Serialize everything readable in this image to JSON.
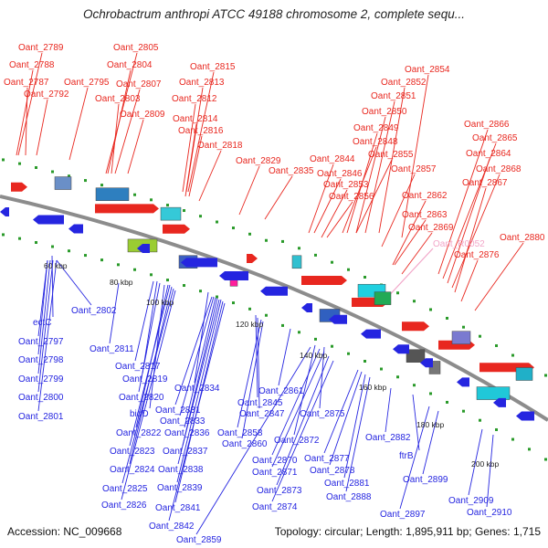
{
  "title": "Ochrobactrum anthropi ATCC 49188 chromosome 2, complete sequ...",
  "accession": "Accession: NC_009668",
  "summary": "Topology: circular; Length: 1,895,911 bp; Genes: 1,715",
  "colors": {
    "forward_gene": "#e8271f",
    "reverse_gene": "#2525e0",
    "rna_gene": "#f2a6c8",
    "backbone": "#8c8c8c",
    "tick": "#2a9a2a",
    "axis_label": "#222222"
  },
  "scale_labels": [
    "60 kbp",
    "80 kbp",
    "100 kbp",
    "120 kbp",
    "140 kbp",
    "160 kbp",
    "180 kbp",
    "200 kbp"
  ],
  "forward_labels": [
    "Oant_2789",
    "Oant_2788",
    "Oant_2787",
    "Oant_2792",
    "Oant_2795",
    "Oant_2805",
    "Oant_2804",
    "Oant_2807",
    "Oant_2803",
    "Oant_2809",
    "Oant_2815",
    "Oant_2813",
    "Oant_2812",
    "Oant_2814",
    "Oant_2816",
    "Oant_2818",
    "Oant_2829",
    "Oant_2835",
    "Oant_2844",
    "Oant_2846",
    "Oant_2853",
    "Oant_2856",
    "Oant_2855",
    "Oant_2848",
    "Oant_2849",
    "Oant_2850",
    "Oant_2851",
    "Oant_2852",
    "Oant_2854",
    "Oant_2857",
    "Oant_2862",
    "Oant_2863",
    "Oant_2869",
    "Oant_2866",
    "Oant_2865",
    "Oant_2864",
    "Oant_2868",
    "Oant_2867",
    "Oant_2880",
    "Oant_2876"
  ],
  "rna_labels": [
    "Oant_R0052"
  ],
  "reverse_labels": [
    "Oant_2802",
    "ectC",
    "Oant_2797",
    "Oant_2798",
    "Oant_2799",
    "Oant_2800",
    "Oant_2801",
    "Oant_2811",
    "Oant_2817",
    "Oant_2819",
    "Oant_2820",
    "bioD",
    "Oant_2822",
    "Oant_2823",
    "Oant_2824",
    "Oant_2825",
    "Oant_2826",
    "Oant_2831",
    "Oant_2833",
    "Oant_2834",
    "Oant_2836",
    "Oant_2837",
    "Oant_2838",
    "Oant_2839",
    "Oant_2841",
    "Oant_2842",
    "Oant_2859",
    "Oant_2845",
    "Oant_2847",
    "Oant_2858",
    "Oant_2860",
    "Oant_2861",
    "Oant_2875",
    "Oant_2872",
    "Oant_2870",
    "Oant_2871",
    "Oant_2873",
    "Oant_2874",
    "Oant_2877",
    "Oant_2878",
    "Oant_2881",
    "Oant_2888",
    "Oant_2882",
    "ftrB",
    "Oant_2897",
    "Oant_2899",
    "Oant_2909",
    "Oant_2910"
  ]
}
